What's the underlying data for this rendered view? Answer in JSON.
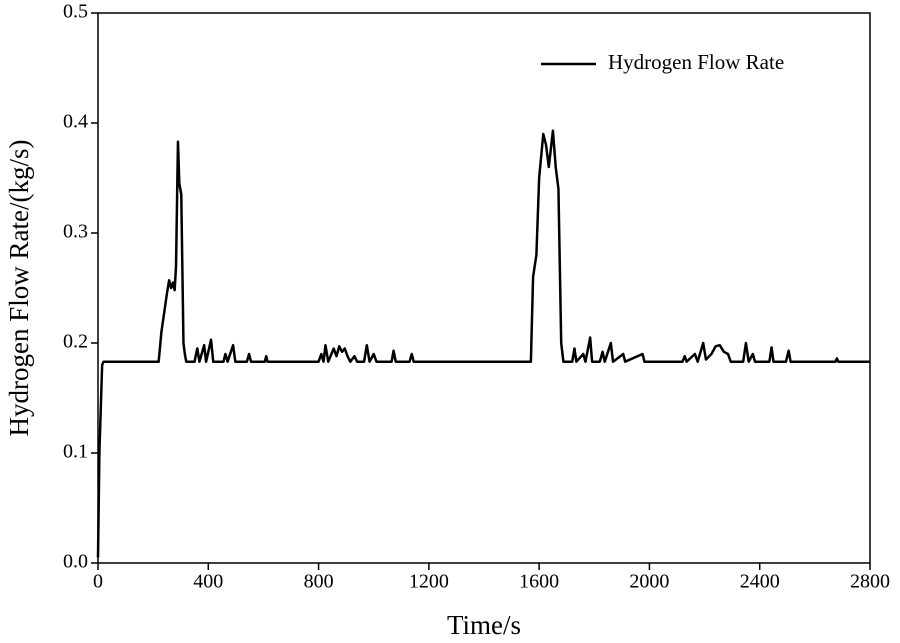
{
  "chart_data": {
    "type": "line",
    "xlabel": "Time/s",
    "ylabel": "Hydrogen Flow Rate/(kg/s)",
    "x": [
      0,
      5,
      15,
      20,
      220,
      230,
      250,
      258,
      265,
      272,
      278,
      283,
      290,
      295,
      302,
      310,
      315,
      320,
      350,
      360,
      368,
      385,
      392,
      410,
      418,
      455,
      462,
      470,
      490,
      498,
      540,
      548,
      555,
      605,
      610,
      615,
      800,
      810,
      818,
      825,
      835,
      855,
      865,
      875,
      885,
      895,
      905,
      915,
      930,
      940,
      965,
      975,
      985,
      1000,
      1010,
      1065,
      1072,
      1080,
      1130,
      1138,
      1145,
      1570,
      1578,
      1590,
      1600,
      1615,
      1625,
      1635,
      1650,
      1660,
      1670,
      1680,
      1688,
      1720,
      1728,
      1735,
      1760,
      1768,
      1785,
      1792,
      1820,
      1830,
      1838,
      1860,
      1868,
      1905,
      1912,
      1975,
      1982,
      2120,
      2128,
      2135,
      2165,
      2175,
      2195,
      2205,
      2225,
      2240,
      2255,
      2270,
      2285,
      2295,
      2340,
      2350,
      2360,
      2375,
      2383,
      2435,
      2443,
      2450,
      2495,
      2505,
      2512,
      2675,
      2680,
      2685,
      2800
    ],
    "series": [
      {
        "name": "Hydrogen Flow Rate",
        "color": "#000000",
        "values": [
          0.005,
          0.1,
          0.18,
          0.183,
          0.183,
          0.21,
          0.245,
          0.257,
          0.25,
          0.255,
          0.248,
          0.27,
          0.383,
          0.345,
          0.335,
          0.2,
          0.19,
          0.183,
          0.183,
          0.195,
          0.183,
          0.198,
          0.183,
          0.203,
          0.183,
          0.183,
          0.19,
          0.183,
          0.198,
          0.183,
          0.183,
          0.19,
          0.183,
          0.183,
          0.188,
          0.183,
          0.183,
          0.19,
          0.183,
          0.198,
          0.183,
          0.195,
          0.188,
          0.197,
          0.192,
          0.195,
          0.188,
          0.183,
          0.188,
          0.183,
          0.183,
          0.198,
          0.183,
          0.19,
          0.183,
          0.183,
          0.193,
          0.183,
          0.183,
          0.19,
          0.183,
          0.183,
          0.26,
          0.28,
          0.35,
          0.39,
          0.38,
          0.36,
          0.393,
          0.36,
          0.34,
          0.2,
          0.183,
          0.183,
          0.195,
          0.183,
          0.19,
          0.183,
          0.205,
          0.183,
          0.183,
          0.192,
          0.183,
          0.2,
          0.183,
          0.19,
          0.183,
          0.19,
          0.183,
          0.183,
          0.188,
          0.183,
          0.19,
          0.183,
          0.2,
          0.185,
          0.19,
          0.197,
          0.198,
          0.192,
          0.19,
          0.183,
          0.183,
          0.2,
          0.183,
          0.19,
          0.183,
          0.183,
          0.196,
          0.183,
          0.183,
          0.193,
          0.183,
          0.183,
          0.186,
          0.183,
          0.183
        ]
      }
    ],
    "xlim": [
      0,
      2800
    ],
    "xticks": [
      0,
      400,
      800,
      1200,
      1600,
      2000,
      2400,
      2800
    ],
    "ylim": [
      0,
      0.5
    ],
    "yticks": [
      {
        "value": 0,
        "label": "0.0"
      },
      0.1,
      0.2,
      0.3,
      0.4,
      0.5
    ],
    "legend": "upper right"
  }
}
